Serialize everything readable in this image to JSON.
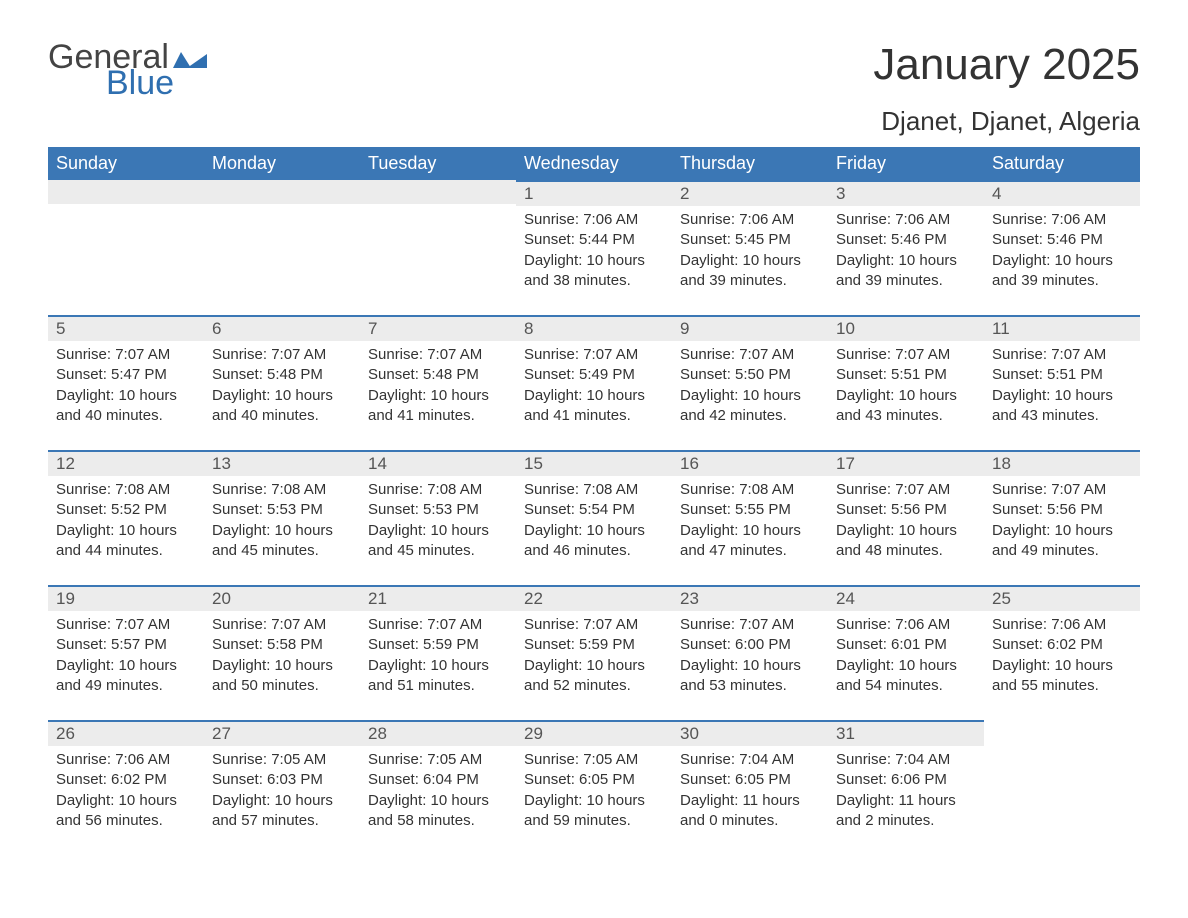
{
  "logo": {
    "general": "General",
    "blue": "Blue",
    "flag_color": "#2f6fb0"
  },
  "title": "January 2025",
  "location": "Djanet, Djanet, Algeria",
  "colors": {
    "header_bg": "#3b77b5",
    "header_text": "#ffffff",
    "daynum_bg": "#ececec",
    "daynum_border": "#3b77b5",
    "body_text": "#333333",
    "page_bg": "#ffffff"
  },
  "weekday_labels": [
    "Sunday",
    "Monday",
    "Tuesday",
    "Wednesday",
    "Thursday",
    "Friday",
    "Saturday"
  ],
  "first_weekday_index": 3,
  "days": [
    {
      "n": 1,
      "sunrise": "7:06 AM",
      "sunset": "5:44 PM",
      "daylight": "10 hours and 38 minutes."
    },
    {
      "n": 2,
      "sunrise": "7:06 AM",
      "sunset": "5:45 PM",
      "daylight": "10 hours and 39 minutes."
    },
    {
      "n": 3,
      "sunrise": "7:06 AM",
      "sunset": "5:46 PM",
      "daylight": "10 hours and 39 minutes."
    },
    {
      "n": 4,
      "sunrise": "7:06 AM",
      "sunset": "5:46 PM",
      "daylight": "10 hours and 39 minutes."
    },
    {
      "n": 5,
      "sunrise": "7:07 AM",
      "sunset": "5:47 PM",
      "daylight": "10 hours and 40 minutes."
    },
    {
      "n": 6,
      "sunrise": "7:07 AM",
      "sunset": "5:48 PM",
      "daylight": "10 hours and 40 minutes."
    },
    {
      "n": 7,
      "sunrise": "7:07 AM",
      "sunset": "5:48 PM",
      "daylight": "10 hours and 41 minutes."
    },
    {
      "n": 8,
      "sunrise": "7:07 AM",
      "sunset": "5:49 PM",
      "daylight": "10 hours and 41 minutes."
    },
    {
      "n": 9,
      "sunrise": "7:07 AM",
      "sunset": "5:50 PM",
      "daylight": "10 hours and 42 minutes."
    },
    {
      "n": 10,
      "sunrise": "7:07 AM",
      "sunset": "5:51 PM",
      "daylight": "10 hours and 43 minutes."
    },
    {
      "n": 11,
      "sunrise": "7:07 AM",
      "sunset": "5:51 PM",
      "daylight": "10 hours and 43 minutes."
    },
    {
      "n": 12,
      "sunrise": "7:08 AM",
      "sunset": "5:52 PM",
      "daylight": "10 hours and 44 minutes."
    },
    {
      "n": 13,
      "sunrise": "7:08 AM",
      "sunset": "5:53 PM",
      "daylight": "10 hours and 45 minutes."
    },
    {
      "n": 14,
      "sunrise": "7:08 AM",
      "sunset": "5:53 PM",
      "daylight": "10 hours and 45 minutes."
    },
    {
      "n": 15,
      "sunrise": "7:08 AM",
      "sunset": "5:54 PM",
      "daylight": "10 hours and 46 minutes."
    },
    {
      "n": 16,
      "sunrise": "7:08 AM",
      "sunset": "5:55 PM",
      "daylight": "10 hours and 47 minutes."
    },
    {
      "n": 17,
      "sunrise": "7:07 AM",
      "sunset": "5:56 PM",
      "daylight": "10 hours and 48 minutes."
    },
    {
      "n": 18,
      "sunrise": "7:07 AM",
      "sunset": "5:56 PM",
      "daylight": "10 hours and 49 minutes."
    },
    {
      "n": 19,
      "sunrise": "7:07 AM",
      "sunset": "5:57 PM",
      "daylight": "10 hours and 49 minutes."
    },
    {
      "n": 20,
      "sunrise": "7:07 AM",
      "sunset": "5:58 PM",
      "daylight": "10 hours and 50 minutes."
    },
    {
      "n": 21,
      "sunrise": "7:07 AM",
      "sunset": "5:59 PM",
      "daylight": "10 hours and 51 minutes."
    },
    {
      "n": 22,
      "sunrise": "7:07 AM",
      "sunset": "5:59 PM",
      "daylight": "10 hours and 52 minutes."
    },
    {
      "n": 23,
      "sunrise": "7:07 AM",
      "sunset": "6:00 PM",
      "daylight": "10 hours and 53 minutes."
    },
    {
      "n": 24,
      "sunrise": "7:06 AM",
      "sunset": "6:01 PM",
      "daylight": "10 hours and 54 minutes."
    },
    {
      "n": 25,
      "sunrise": "7:06 AM",
      "sunset": "6:02 PM",
      "daylight": "10 hours and 55 minutes."
    },
    {
      "n": 26,
      "sunrise": "7:06 AM",
      "sunset": "6:02 PM",
      "daylight": "10 hours and 56 minutes."
    },
    {
      "n": 27,
      "sunrise": "7:05 AM",
      "sunset": "6:03 PM",
      "daylight": "10 hours and 57 minutes."
    },
    {
      "n": 28,
      "sunrise": "7:05 AM",
      "sunset": "6:04 PM",
      "daylight": "10 hours and 58 minutes."
    },
    {
      "n": 29,
      "sunrise": "7:05 AM",
      "sunset": "6:05 PM",
      "daylight": "10 hours and 59 minutes."
    },
    {
      "n": 30,
      "sunrise": "7:04 AM",
      "sunset": "6:05 PM",
      "daylight": "11 hours and 0 minutes."
    },
    {
      "n": 31,
      "sunrise": "7:04 AM",
      "sunset": "6:06 PM",
      "daylight": "11 hours and 2 minutes."
    }
  ],
  "labels": {
    "sunrise": "Sunrise:",
    "sunset": "Sunset:",
    "daylight": "Daylight:"
  }
}
